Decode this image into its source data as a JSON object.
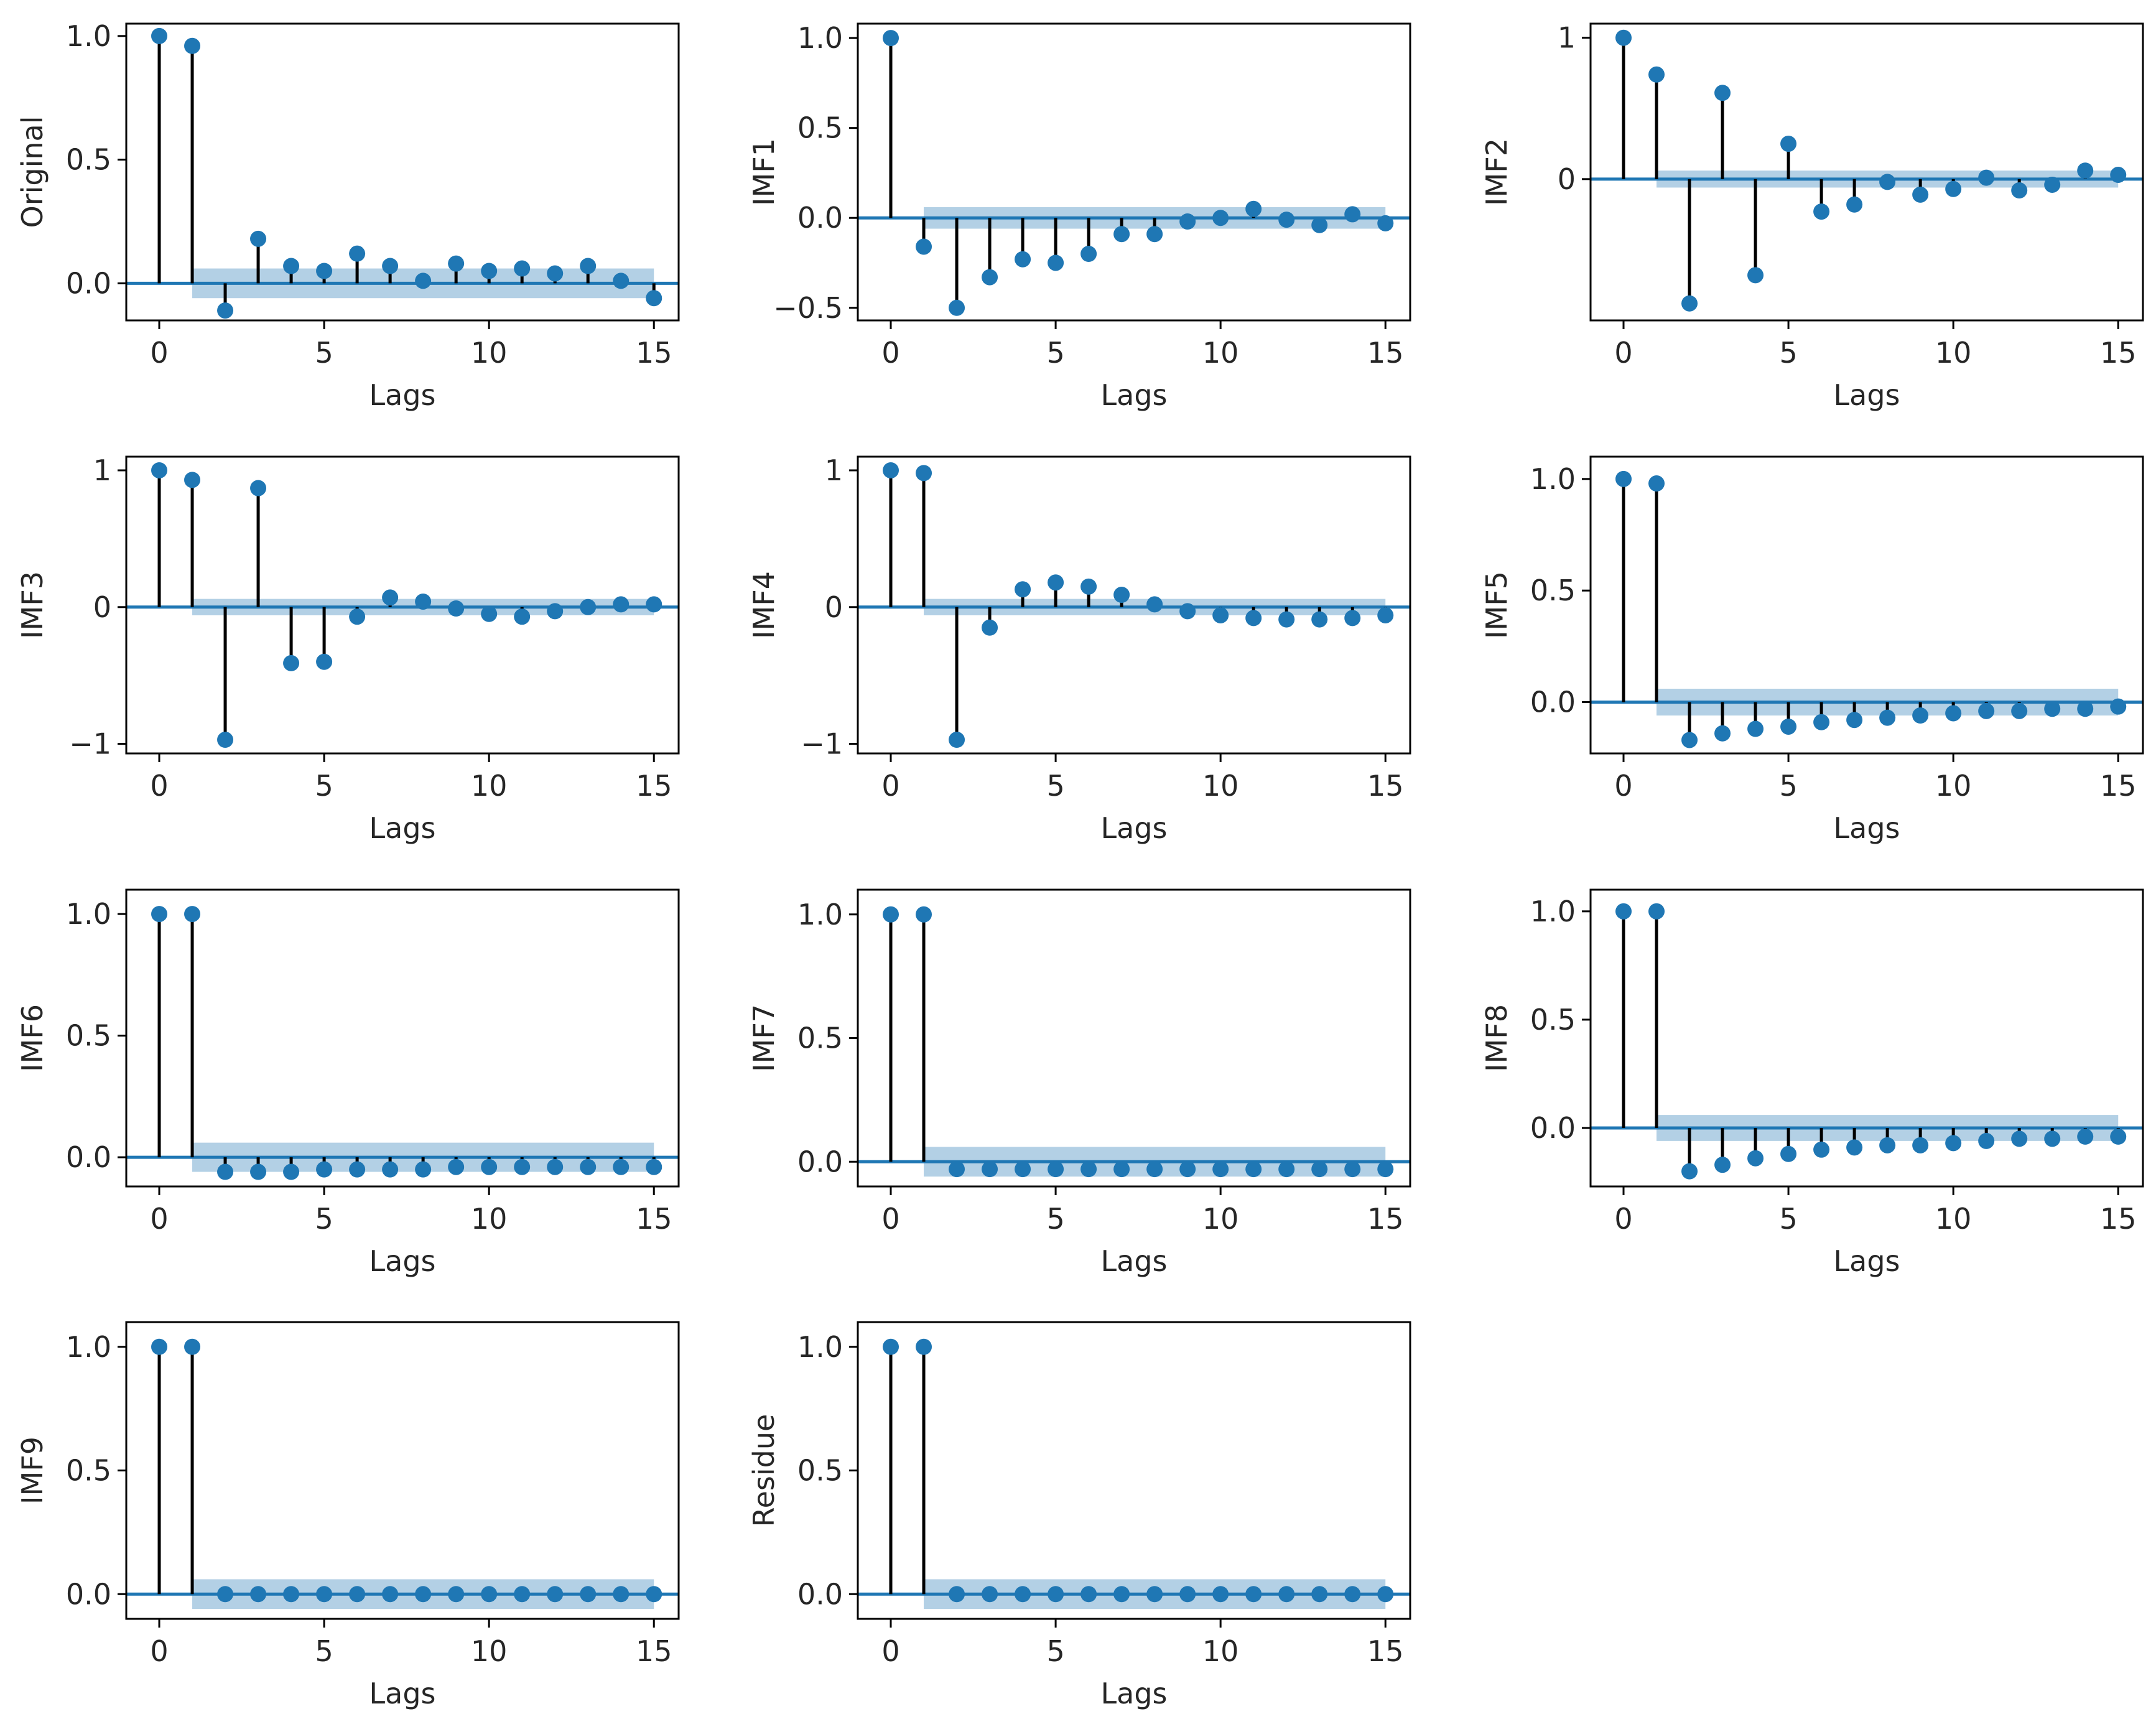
{
  "colors": {
    "marker": "#1f77b4",
    "band": "#a6c8e0",
    "stem": "#000000",
    "zero_line": "#1f77b4",
    "frame": "#000000"
  },
  "chart_data": [
    {
      "type": "stem",
      "ylabel": "Original",
      "xlabel": "Lags",
      "xlim": [
        -1,
        15.75
      ],
      "ylim": [
        -0.15,
        1.05
      ],
      "xticks": [
        "0",
        "5",
        "10",
        "15"
      ],
      "yticks": [
        "0.0",
        "0.5",
        "1.0"
      ],
      "lags": [
        0,
        1,
        2,
        3,
        4,
        5,
        6,
        7,
        8,
        9,
        10,
        11,
        12,
        13,
        14,
        15
      ],
      "values": [
        1.0,
        0.96,
        -0.11,
        0.18,
        0.07,
        0.05,
        0.12,
        0.07,
        0.01,
        0.08,
        0.05,
        0.06,
        0.04,
        0.07,
        0.01,
        -0.06
      ],
      "conf_band": 0.06
    },
    {
      "type": "stem",
      "ylabel": "IMF1",
      "xlabel": "Lags",
      "xlim": [
        -1,
        15.75
      ],
      "ylim": [
        -0.57,
        1.08
      ],
      "xticks": [
        "0",
        "5",
        "10",
        "15"
      ],
      "yticks": [
        "−0.5",
        "0.0",
        "0.5",
        "1.0"
      ],
      "lags": [
        0,
        1,
        2,
        3,
        4,
        5,
        6,
        7,
        8,
        9,
        10,
        11,
        12,
        13,
        14,
        15
      ],
      "values": [
        1.0,
        -0.16,
        -0.5,
        -0.33,
        -0.23,
        -0.25,
        -0.2,
        -0.09,
        -0.09,
        -0.02,
        0.0,
        0.05,
        -0.01,
        -0.04,
        0.02,
        -0.03
      ],
      "conf_band": 0.06
    },
    {
      "type": "stem",
      "ylabel": "IMF2",
      "xlabel": "Lags",
      "xlim": [
        -1,
        15.75
      ],
      "ylim": [
        -1.0,
        1.1
      ],
      "xticks": [
        "0",
        "5",
        "10",
        "15"
      ],
      "yticks": [
        "0",
        "1"
      ],
      "lags": [
        0,
        1,
        2,
        3,
        4,
        5,
        6,
        7,
        8,
        9,
        10,
        11,
        12,
        13,
        14,
        15
      ],
      "values": [
        1.0,
        0.74,
        -0.88,
        0.61,
        -0.68,
        0.25,
        -0.23,
        -0.18,
        -0.02,
        -0.11,
        -0.07,
        0.01,
        -0.08,
        -0.04,
        0.06,
        0.03
      ],
      "conf_band": 0.06
    },
    {
      "type": "stem",
      "ylabel": "IMF3",
      "xlabel": "Lags",
      "xlim": [
        -1,
        15.75
      ],
      "ylim": [
        -1.07,
        1.1
      ],
      "xticks": [
        "0",
        "5",
        "10",
        "15"
      ],
      "yticks": [
        "−1",
        "0",
        "1"
      ],
      "lags": [
        0,
        1,
        2,
        3,
        4,
        5,
        6,
        7,
        8,
        9,
        10,
        11,
        12,
        13,
        14,
        15
      ],
      "values": [
        1.0,
        0.93,
        -0.97,
        0.87,
        -0.41,
        -0.4,
        -0.07,
        0.07,
        0.04,
        -0.01,
        -0.05,
        -0.07,
        -0.03,
        0.0,
        0.02,
        0.02
      ],
      "conf_band": 0.06
    },
    {
      "type": "stem",
      "ylabel": "IMF4",
      "xlabel": "Lags",
      "xlim": [
        -1,
        15.75
      ],
      "ylim": [
        -1.07,
        1.1
      ],
      "xticks": [
        "0",
        "5",
        "10",
        "15"
      ],
      "yticks": [
        "−1",
        "0",
        "1"
      ],
      "lags": [
        0,
        1,
        2,
        3,
        4,
        5,
        6,
        7,
        8,
        9,
        10,
        11,
        12,
        13,
        14,
        15
      ],
      "values": [
        1.0,
        0.98,
        -0.97,
        -0.15,
        0.13,
        0.18,
        0.15,
        0.09,
        0.02,
        -0.03,
        -0.06,
        -0.08,
        -0.09,
        -0.09,
        -0.08,
        -0.06
      ],
      "conf_band": 0.06
    },
    {
      "type": "stem",
      "ylabel": "IMF5",
      "xlabel": "Lags",
      "xlim": [
        -1,
        15.75
      ],
      "ylim": [
        -0.23,
        1.1
      ],
      "xticks": [
        "0",
        "5",
        "10",
        "15"
      ],
      "yticks": [
        "0.0",
        "0.5",
        "1.0"
      ],
      "lags": [
        0,
        1,
        2,
        3,
        4,
        5,
        6,
        7,
        8,
        9,
        10,
        11,
        12,
        13,
        14,
        15
      ],
      "values": [
        1.0,
        0.98,
        -0.17,
        -0.14,
        -0.12,
        -0.11,
        -0.09,
        -0.08,
        -0.07,
        -0.06,
        -0.05,
        -0.04,
        -0.04,
        -0.03,
        -0.03,
        -0.02
      ],
      "conf_band": 0.06
    },
    {
      "type": "stem",
      "ylabel": "IMF6",
      "xlabel": "Lags",
      "xlim": [
        -1,
        15.75
      ],
      "ylim": [
        -0.12,
        1.1
      ],
      "xticks": [
        "0",
        "5",
        "10",
        "15"
      ],
      "yticks": [
        "0.0",
        "0.5",
        "1.0"
      ],
      "lags": [
        0,
        1,
        2,
        3,
        4,
        5,
        6,
        7,
        8,
        9,
        10,
        11,
        12,
        13,
        14,
        15
      ],
      "values": [
        1.0,
        1.0,
        -0.06,
        -0.06,
        -0.06,
        -0.05,
        -0.05,
        -0.05,
        -0.05,
        -0.04,
        -0.04,
        -0.04,
        -0.04,
        -0.04,
        -0.04,
        -0.04
      ],
      "conf_band": 0.06
    },
    {
      "type": "stem",
      "ylabel": "IMF7",
      "xlabel": "Lags",
      "xlim": [
        -1,
        15.75
      ],
      "ylim": [
        -0.1,
        1.1
      ],
      "xticks": [
        "0",
        "5",
        "10",
        "15"
      ],
      "yticks": [
        "0.0",
        "0.5",
        "1.0"
      ],
      "lags": [
        0,
        1,
        2,
        3,
        4,
        5,
        6,
        7,
        8,
        9,
        10,
        11,
        12,
        13,
        14,
        15
      ],
      "values": [
        1.0,
        1.0,
        -0.03,
        -0.03,
        -0.03,
        -0.03,
        -0.03,
        -0.03,
        -0.03,
        -0.03,
        -0.03,
        -0.03,
        -0.03,
        -0.03,
        -0.03,
        -0.03
      ],
      "conf_band": 0.06
    },
    {
      "type": "stem",
      "ylabel": "IMF8",
      "xlabel": "Lags",
      "xlim": [
        -1,
        15.75
      ],
      "ylim": [
        -0.27,
        1.1
      ],
      "xticks": [
        "0",
        "5",
        "10",
        "15"
      ],
      "yticks": [
        "0.0",
        "0.5",
        "1.0"
      ],
      "lags": [
        0,
        1,
        2,
        3,
        4,
        5,
        6,
        7,
        8,
        9,
        10,
        11,
        12,
        13,
        14,
        15
      ],
      "values": [
        1.0,
        1.0,
        -0.2,
        -0.17,
        -0.14,
        -0.12,
        -0.1,
        -0.09,
        -0.08,
        -0.08,
        -0.07,
        -0.06,
        -0.05,
        -0.05,
        -0.04,
        -0.04
      ],
      "conf_band": 0.06
    },
    {
      "type": "stem",
      "ylabel": "IMF9",
      "xlabel": "Lags",
      "xlim": [
        -1,
        15.75
      ],
      "ylim": [
        -0.1,
        1.1
      ],
      "xticks": [
        "0",
        "5",
        "10",
        "15"
      ],
      "yticks": [
        "0.0",
        "0.5",
        "1.0"
      ],
      "lags": [
        0,
        1,
        2,
        3,
        4,
        5,
        6,
        7,
        8,
        9,
        10,
        11,
        12,
        13,
        14,
        15
      ],
      "values": [
        1.0,
        1.0,
        0.0,
        0.0,
        0.0,
        0.0,
        0.0,
        0.0,
        0.0,
        0.0,
        0.0,
        0.0,
        0.0,
        0.0,
        0.0,
        0.0
      ],
      "conf_band": 0.06
    },
    {
      "type": "stem",
      "ylabel": "Residue",
      "xlabel": "Lags",
      "xlim": [
        -1,
        15.75
      ],
      "ylim": [
        -0.1,
        1.1
      ],
      "xticks": [
        "0",
        "5",
        "10",
        "15"
      ],
      "yticks": [
        "0.0",
        "0.5",
        "1.0"
      ],
      "lags": [
        0,
        1,
        2,
        3,
        4,
        5,
        6,
        7,
        8,
        9,
        10,
        11,
        12,
        13,
        14,
        15
      ],
      "values": [
        1.0,
        1.0,
        0.0,
        0.0,
        0.0,
        0.0,
        0.0,
        0.0,
        0.0,
        0.0,
        0.0,
        0.0,
        0.0,
        0.0,
        0.0,
        0.0
      ],
      "conf_band": 0.06
    }
  ]
}
